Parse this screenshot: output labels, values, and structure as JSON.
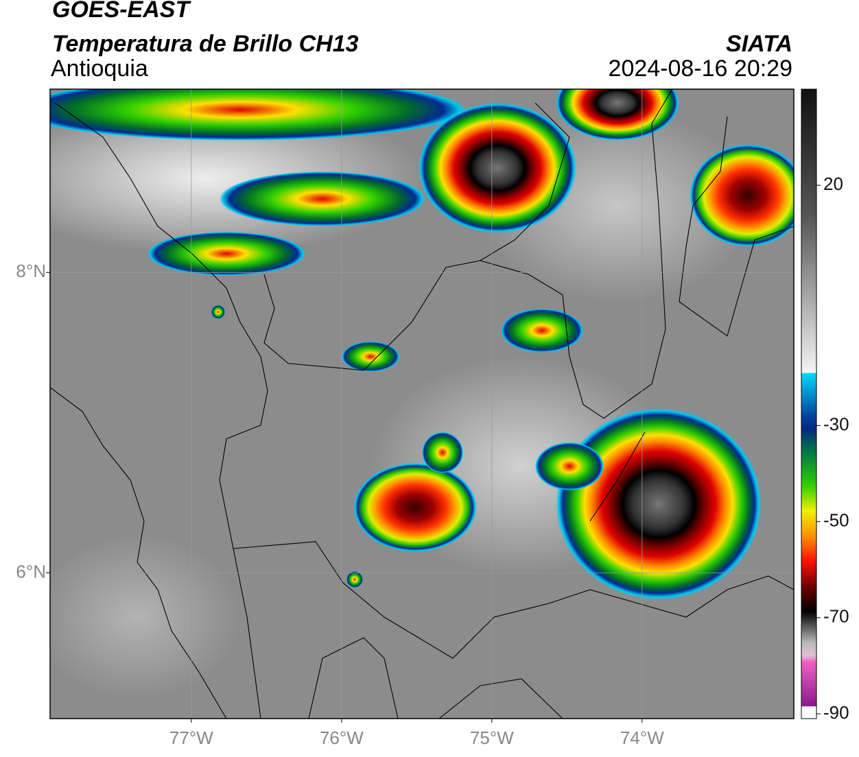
{
  "header": {
    "satellite": "GOES-EAST",
    "product": "Temperatura de Brillo CH13",
    "region": "Antioquia",
    "source": "SIATA",
    "datetime": "2024-08-16 20:29"
  },
  "map": {
    "xlim": [
      -77.94,
      -72.99
    ],
    "ylim": [
      5.03,
      9.22
    ],
    "xticks": [
      {
        "value": -77,
        "label": "77°W"
      },
      {
        "value": -76,
        "label": "76°W"
      },
      {
        "value": -75,
        "label": "75°W"
      },
      {
        "value": -74,
        "label": "74°W"
      }
    ],
    "yticks": [
      {
        "value": 6,
        "label": "6°N"
      },
      {
        "value": 8,
        "label": "8°N"
      }
    ],
    "grid": true
  },
  "colorbar": {
    "lim": [
      -91,
      40
    ],
    "ticks": [
      20,
      -30,
      -50,
      -70,
      -90
    ]
  }
}
